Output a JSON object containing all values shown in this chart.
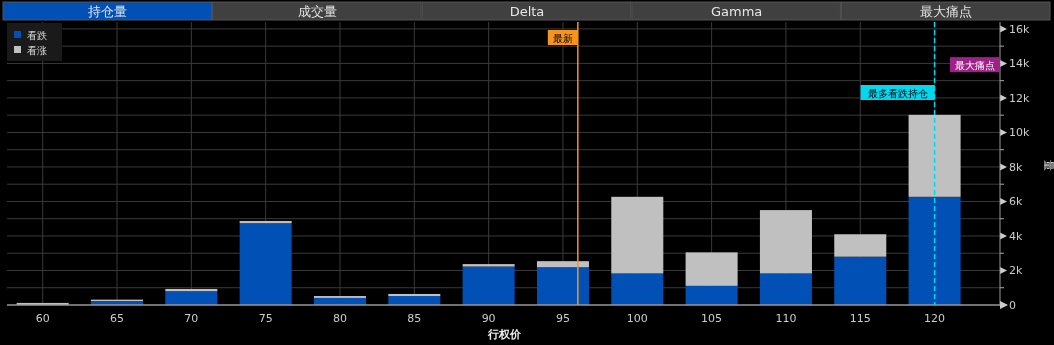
{
  "chart_data": {
    "type": "bar",
    "stacked": true,
    "x": [
      60,
      65,
      70,
      75,
      80,
      85,
      90,
      95,
      100,
      105,
      110,
      115,
      120
    ],
    "series": [
      {
        "name": "看跌",
        "color": "#0050b5",
        "values": [
          null,
          230,
          800,
          4740,
          410,
          520,
          2230,
          2190,
          1830,
          1110,
          1830,
          2800,
          6270
        ]
      },
      {
        "name": "看涨",
        "color": "#c0c0c0",
        "values": [
          120,
          80,
          130,
          130,
          110,
          120,
          140,
          350,
          4440,
          1940,
          3670,
          1300,
          4750
        ]
      }
    ],
    "xlim": [
      57.6,
      124.4
    ],
    "xticks": [
      60,
      65,
      70,
      75,
      80,
      85,
      90,
      95,
      100,
      105,
      110,
      115,
      120
    ],
    "ylim": [
      0,
      16400
    ],
    "yticks": [
      {
        "value": 0,
        "label": "0"
      },
      {
        "value": 1000,
        "label": null
      },
      {
        "value": 2000,
        "label": "2k"
      },
      {
        "value": 3000,
        "label": null
      },
      {
        "value": 4000,
        "label": "4k"
      },
      {
        "value": 5000,
        "label": null
      },
      {
        "value": 6000,
        "label": "6k"
      },
      {
        "value": 7000,
        "label": null
      },
      {
        "value": 8000,
        "label": "8k"
      },
      {
        "value": 9000,
        "label": null
      },
      {
        "value": 10000,
        "label": "10k"
      },
      {
        "value": 11000,
        "label": null
      },
      {
        "value": 12000,
        "label": "12k"
      },
      {
        "value": 13000,
        "label": null
      },
      {
        "value": 14000,
        "label": "14k"
      },
      {
        "value": 15000,
        "label": null
      },
      {
        "value": 16000,
        "label": "16k"
      }
    ],
    "grid": true,
    "legend": "top left",
    "xlabel": "行权价",
    "ylabel": "量",
    "ref_lines": [
      {
        "axis": "x",
        "value": 96,
        "label": "最新",
        "color": "#f7941d",
        "line_style": "solid"
      },
      {
        "axis": "x",
        "value": 120,
        "label": "最多看跌持仓",
        "color": "#00d8f0",
        "line_style": "dashed"
      }
    ],
    "annotations": [
      "持仓量",
      "成交量",
      "Delta",
      "Gamma",
      "最大痛点",
      "最大痛点"
    ]
  }
}
